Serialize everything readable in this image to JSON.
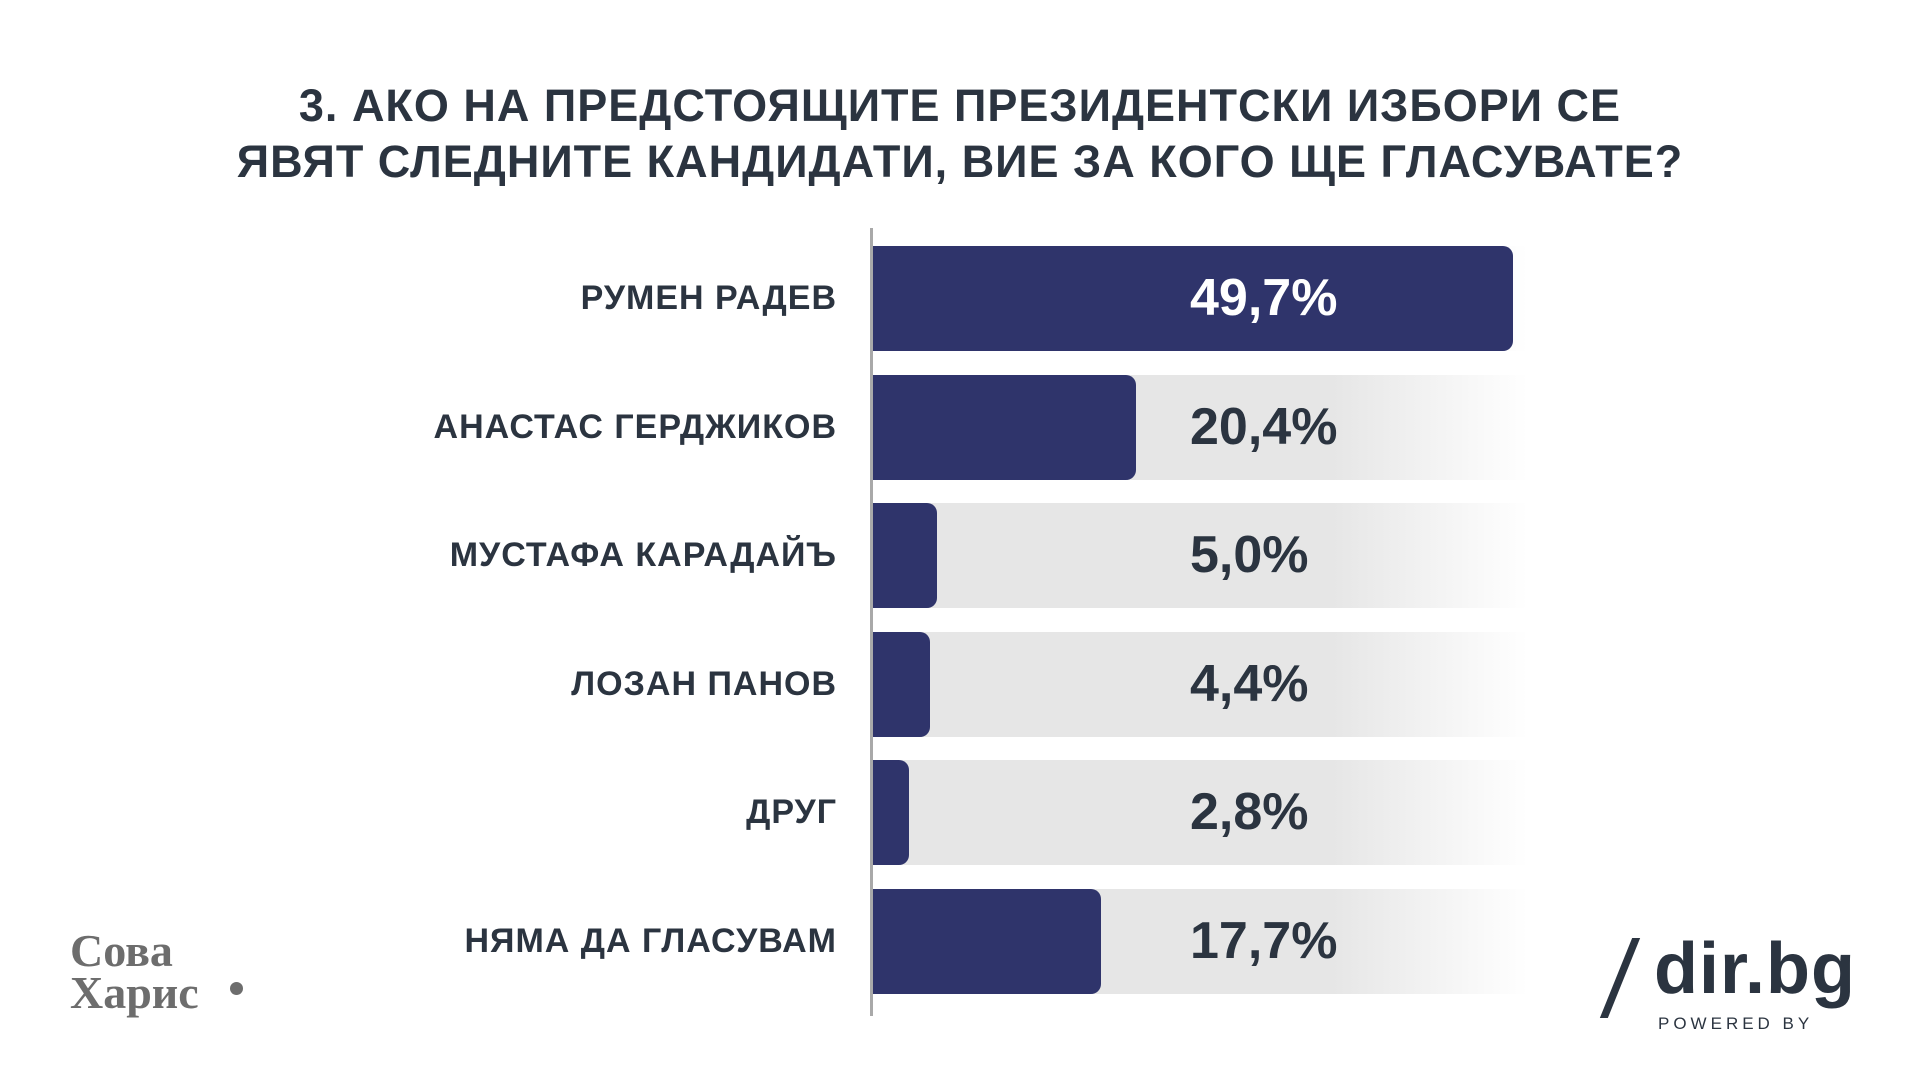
{
  "title": {
    "line1": "3. АКО НА ПРЕДСТОЯЩИТЕ ПРЕЗИДЕНТСКИ ИЗБОРИ СЕ",
    "line2": "ЯВЯТ СЛЕДНИТЕ КАНДИДАТИ, ВИЕ ЗА КОГО ЩЕ ГЛАСУВАТЕ?"
  },
  "chart_data": {
    "type": "bar",
    "orientation": "horizontal",
    "title": "3. АКО НА ПРЕДСТОЯЩИТЕ ПРЕЗИДЕНТСКИ ИЗБОРИ СЕ ЯВЯТ СЛЕДНИТЕ КАНДИДАТИ, ВИЕ ЗА КОГО ЩЕ ГЛАСУВАТЕ?",
    "categories": [
      "РУМЕН РАДЕВ",
      "АНАСТАС ГЕРДЖИКОВ",
      "МУСТАФА КАРАДАЙЪ",
      "ЛОЗАН ПАНОВ",
      "ДРУГ",
      "НЯМА ДА ГЛАСУВАМ"
    ],
    "values": [
      49.7,
      20.4,
      5.0,
      4.4,
      2.8,
      17.7
    ],
    "value_labels": [
      "49,7%",
      "20,4%",
      "5,0%",
      "4,4%",
      "2,8%",
      "17,7%"
    ],
    "xlim": [
      0,
      50
    ],
    "unit": "%",
    "bar_color": "#2f346b",
    "track_color": "#e6e6e6"
  },
  "logos": {
    "sova_line1": "Сова",
    "sova_line2": "Харис",
    "dir_name": "dir.bg",
    "dir_powered": "POWERED BY"
  }
}
